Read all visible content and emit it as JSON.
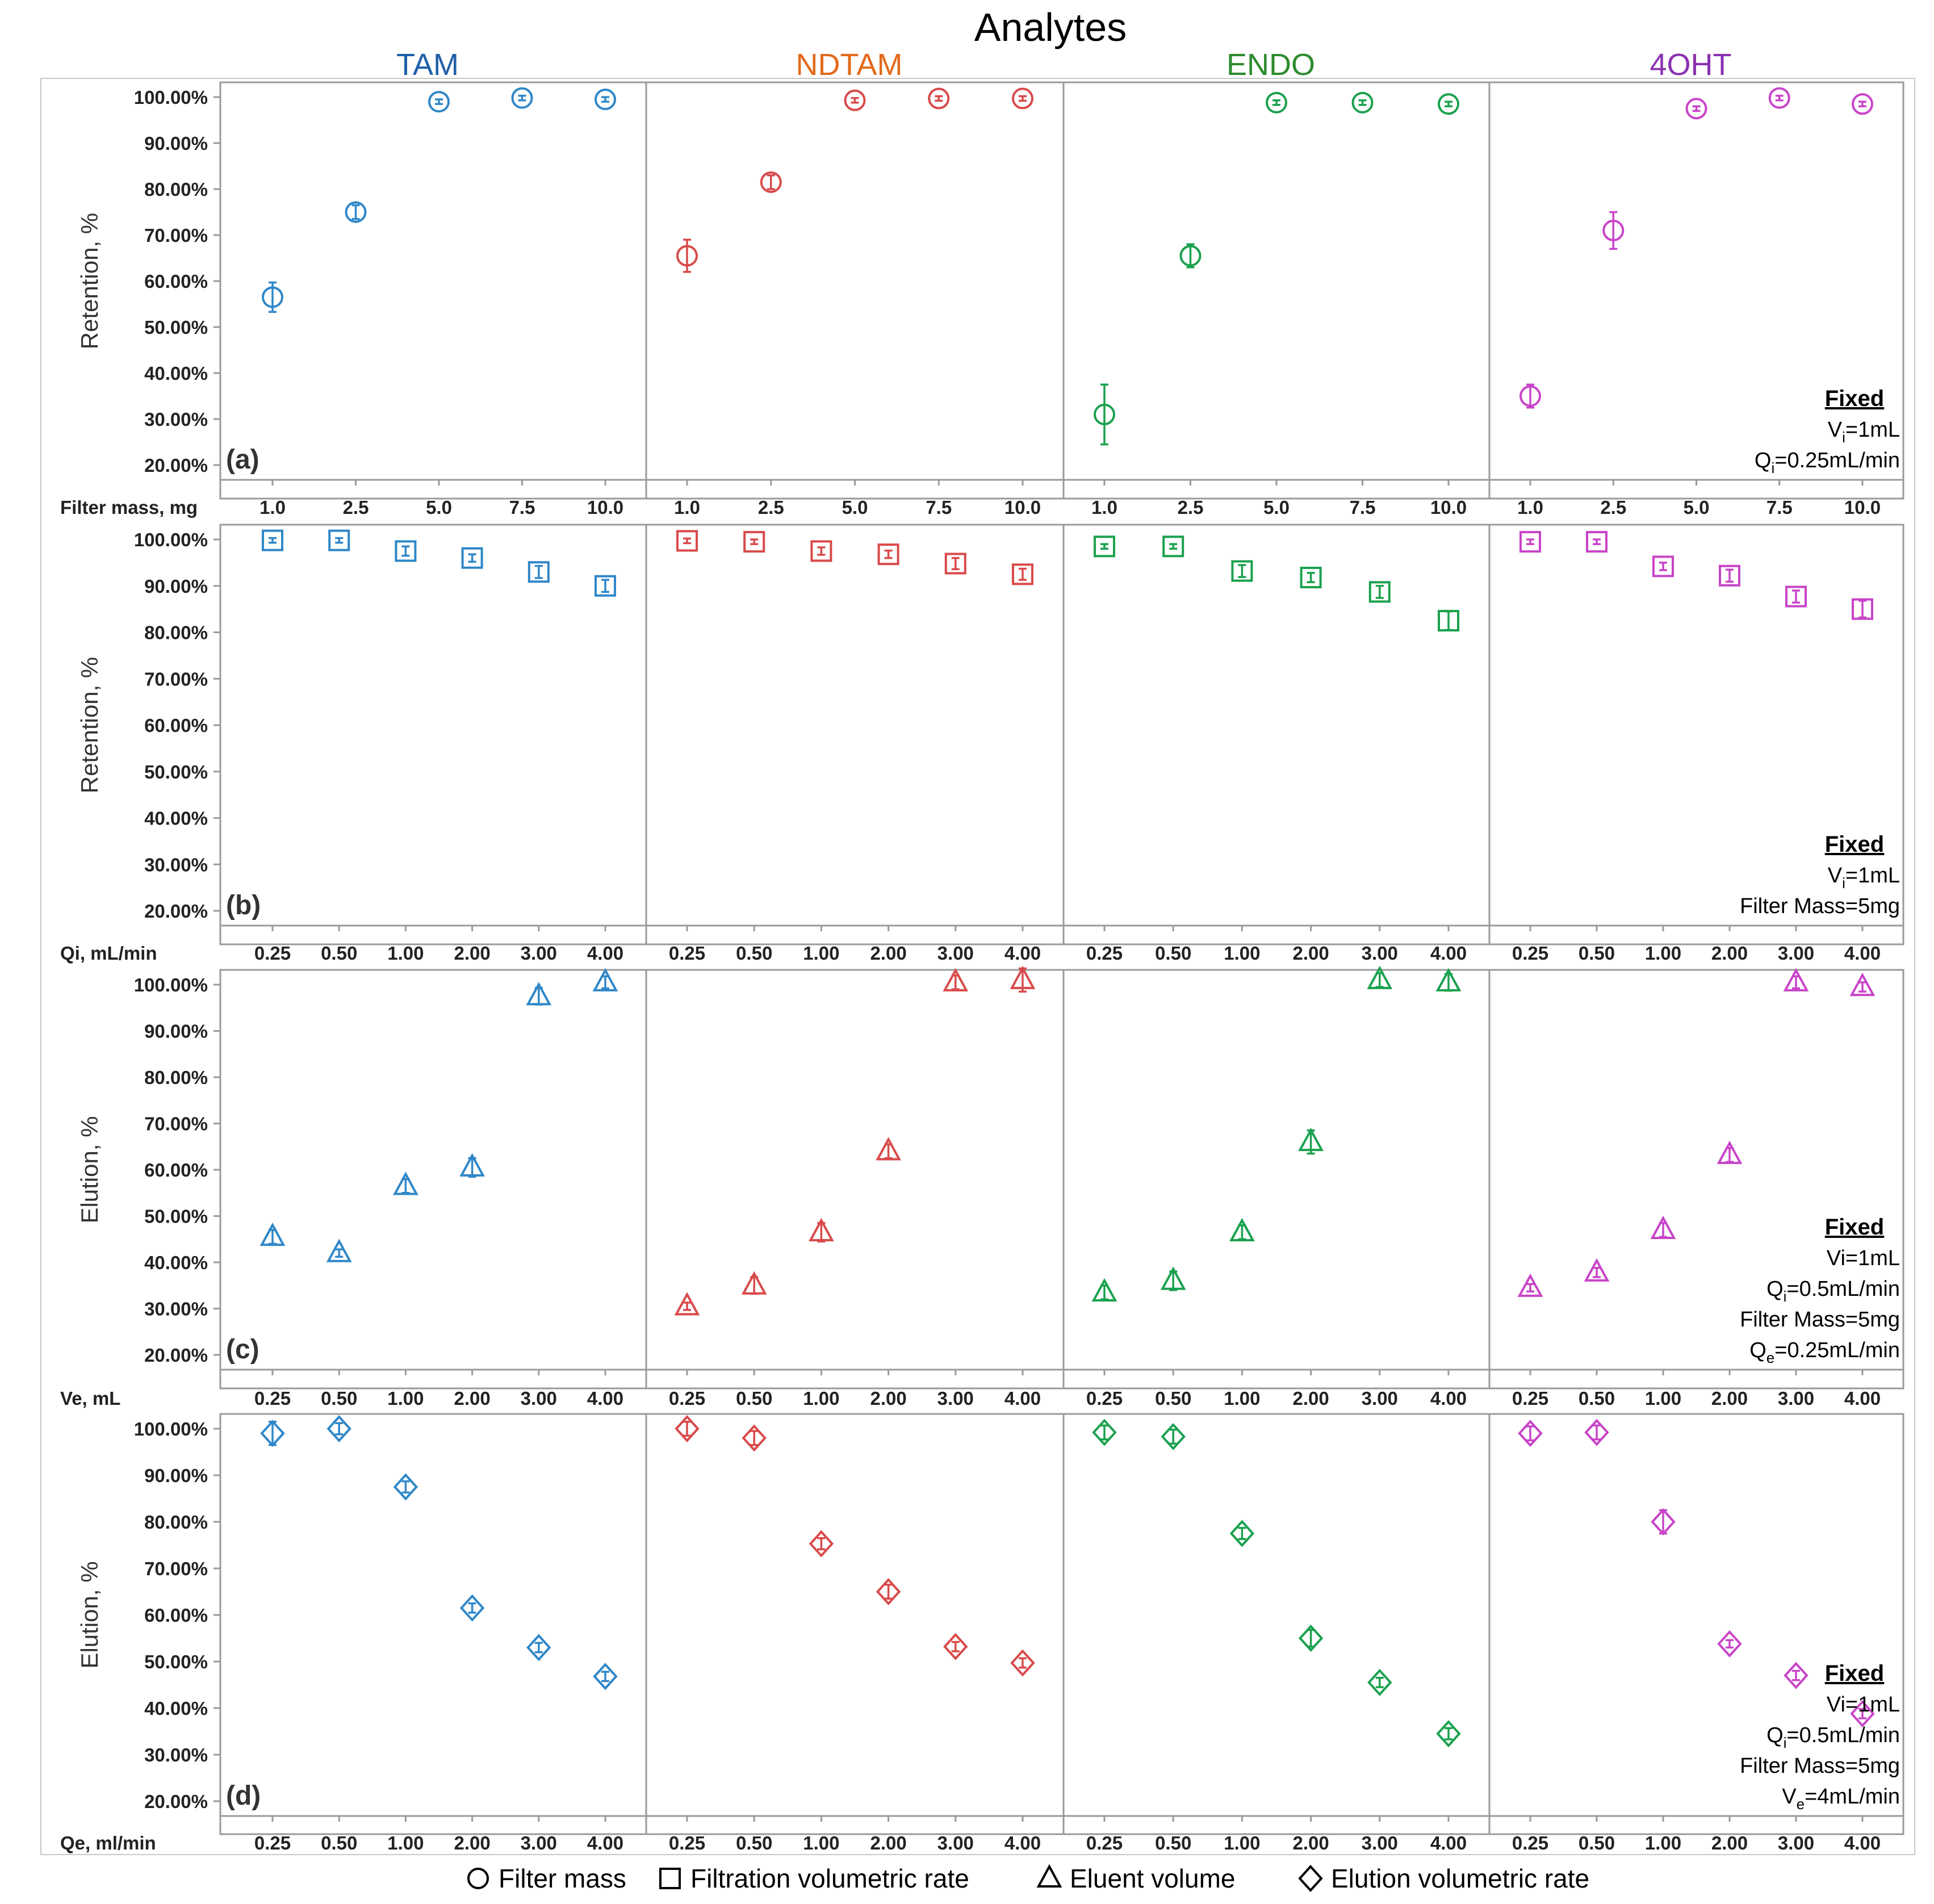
{
  "figure": {
    "title": "Analytes",
    "legend": {
      "items": [
        {
          "shape": "circle",
          "label": "Filter mass"
        },
        {
          "shape": "square",
          "label": "Filtration volumetric rate"
        },
        {
          "shape": "triangle",
          "label": "Eluent volume"
        },
        {
          "shape": "diamond",
          "label": "Elution volumetric rate"
        }
      ]
    }
  },
  "chart_data": {
    "type": "scatter",
    "title": "Analytes",
    "analytes": [
      {
        "name": "TAM",
        "color": "#2f87c8",
        "title_color": "#1f5fa8"
      },
      {
        "name": "NDTAM",
        "color": "#d94a4a",
        "title_color": "#e26a1b"
      },
      {
        "name": "ENDO",
        "color": "#1aa14e",
        "title_color": "#2e8b2e"
      },
      {
        "name": "4OHT",
        "color": "#c844c8",
        "title_color": "#8a32b0"
      }
    ],
    "panels": [
      {
        "label": "(a)",
        "ylabel": "Retention, %",
        "xlabel": "Filter mass, mg",
        "marker": "circle",
        "categories": [
          "1.0",
          "2.5",
          "5.0",
          "7.5",
          "10.0"
        ],
        "ylim": [
          20,
          100
        ],
        "yticks": [
          "100.00%",
          "90.00%",
          "80.00%",
          "70.00%",
          "60.00%",
          "50.00%",
          "40.00%",
          "30.00%",
          "20.00%"
        ],
        "fixed": {
          "heading": "Fixed",
          "lines": [
            [
              "V",
              "i",
              "=1mL"
            ],
            [
              "Q",
              "i",
              "=0.25mL/min"
            ]
          ]
        },
        "series": [
          {
            "analyte": "TAM",
            "values": [
              56.5,
              75.0,
              99.0,
              99.8,
              99.5
            ],
            "errors": [
              3.2,
              1.5,
              0.5,
              0.5,
              0.5
            ]
          },
          {
            "analyte": "NDTAM",
            "values": [
              65.5,
              81.5,
              99.3,
              99.7,
              99.7
            ],
            "errors": [
              3.5,
              1.5,
              0.5,
              0.5,
              0.5
            ]
          },
          {
            "analyte": "ENDO",
            "values": [
              31.0,
              65.5,
              98.8,
              98.8,
              98.5
            ],
            "errors": [
              6.5,
              2.5,
              0.5,
              0.5,
              0.5
            ]
          },
          {
            "analyte": "4OHT",
            "values": [
              35.0,
              71.0,
              97.5,
              99.8,
              98.5
            ],
            "errors": [
              2.5,
              4.0,
              0.5,
              0.5,
              0.5
            ]
          }
        ]
      },
      {
        "label": "(b)",
        "ylabel": "Retention, %",
        "xlabel": "Qi, mL/min",
        "marker": "square",
        "categories": [
          "0.25",
          "0.50",
          "1.00",
          "2.00",
          "3.00",
          "4.00"
        ],
        "ylim": [
          20,
          100
        ],
        "yticks": [
          "100.00%",
          "90.00%",
          "80.00%",
          "70.00%",
          "60.00%",
          "50.00%",
          "40.00%",
          "30.00%",
          "20.00%"
        ],
        "fixed": {
          "heading": "Fixed",
          "lines": [
            [
              "V",
              "i",
              "=1mL"
            ],
            [
              "Filter Mass=5mg",
              "",
              ""
            ]
          ]
        },
        "series": [
          {
            "analyte": "TAM",
            "values": [
              99.8,
              99.8,
              97.5,
              96.0,
              93.0,
              90.0
            ],
            "errors": [
              0.5,
              0.5,
              1.0,
              0.8,
              1.3,
              1.3
            ]
          },
          {
            "analyte": "NDTAM",
            "values": [
              99.7,
              99.5,
              97.5,
              96.8,
              94.8,
              92.5
            ],
            "errors": [
              0.5,
              0.5,
              0.8,
              0.8,
              1.2,
              1.2
            ]
          },
          {
            "analyte": "ENDO",
            "values": [
              98.5,
              98.5,
              93.2,
              91.8,
              88.7,
              82.5
            ],
            "errors": [
              0.5,
              0.5,
              1.3,
              1.0,
              1.3,
              2.0
            ]
          },
          {
            "analyte": "4OHT",
            "values": [
              99.5,
              99.5,
              94.2,
              92.2,
              87.7,
              85.0
            ],
            "errors": [
              0.5,
              0.5,
              0.8,
              1.3,
              1.3,
              1.8
            ]
          }
        ]
      },
      {
        "label": "(c)",
        "ylabel": "Elution, %",
        "xlabel": "Ve, mL",
        "marker": "triangle",
        "categories": [
          "0.25",
          "0.50",
          "1.00",
          "2.00",
          "3.00",
          "4.00"
        ],
        "ylim": [
          20,
          100
        ],
        "yticks": [
          "100.00%",
          "90.00%",
          "80.00%",
          "70.00%",
          "60.00%",
          "50.00%",
          "40.00%",
          "30.00%",
          "20.00%"
        ],
        "fixed": {
          "heading": "Fixed",
          "lines": [
            [
              "Vi=1mL",
              "",
              ""
            ],
            [
              "Q",
              "i",
              "=0.5mL/min"
            ],
            [
              "Filter Mass=5mg",
              "",
              ""
            ],
            [
              "Q",
              "e",
              "=0.25mL/min"
            ]
          ]
        },
        "series": [
          {
            "analyte": "TAM",
            "values": [
              45.5,
              42.0,
              56.5,
              60.5,
              97.5,
              100.5
            ],
            "errors": [
              1.5,
              0.8,
              1.5,
              2.0,
              1.8,
              1.3
            ]
          },
          {
            "analyte": "NDTAM",
            "values": [
              30.5,
              35.0,
              46.5,
              64.0,
              100.5,
              101.0
            ],
            "errors": [
              0.8,
              1.8,
              2.0,
              1.5,
              1.5,
              2.5
            ]
          },
          {
            "analyte": "ENDO",
            "values": [
              33.5,
              36.0,
              46.5,
              66.0,
              101.0,
              100.5
            ],
            "errors": [
              1.5,
              2.0,
              1.5,
              2.5,
              1.5,
              1.8
            ]
          },
          {
            "analyte": "4OHT",
            "values": [
              34.5,
              37.8,
              47.0,
              63.2,
              100.5,
              99.5
            ],
            "errors": [
              0.8,
              1.0,
              1.5,
              1.5,
              1.3,
              1.0
            ]
          }
        ]
      },
      {
        "label": "(d)",
        "ylabel": "Elution, %",
        "xlabel": "Qe, ml/min",
        "marker": "diamond",
        "categories": [
          "0.25",
          "0.50",
          "1.00",
          "2.00",
          "3.00",
          "4.00"
        ],
        "ylim": [
          20,
          100
        ],
        "yticks": [
          "100.00%",
          "90.00%",
          "80.00%",
          "70.00%",
          "60.00%",
          "50.00%",
          "40.00%",
          "30.00%",
          "20.00%"
        ],
        "fixed": {
          "heading": "Fixed",
          "lines": [
            [
              "Vi=1mL",
              "",
              ""
            ],
            [
              "Q",
              "i",
              "=0.5mL/min"
            ],
            [
              "Filter Mass=5mg",
              "",
              ""
            ],
            [
              "V",
              "e",
              "=4mL/min"
            ]
          ]
        },
        "series": [
          {
            "analyte": "TAM",
            "values": [
              99.0,
              100.0,
              87.5,
              61.5,
              53.0,
              46.8
            ],
            "errors": [
              2.5,
              1.2,
              1.2,
              1.0,
              1.0,
              1.0
            ]
          },
          {
            "analyte": "NDTAM",
            "values": [
              100.0,
              98.0,
              75.3,
              65.0,
              53.2,
              49.7
            ],
            "errors": [
              1.5,
              1.5,
              1.2,
              1.5,
              1.0,
              1.0
            ]
          },
          {
            "analyte": "ENDO",
            "values": [
              99.2,
              98.3,
              77.5,
              55.0,
              45.5,
              34.5
            ],
            "errors": [
              1.5,
              1.5,
              1.2,
              1.8,
              1.0,
              1.2
            ]
          },
          {
            "analyte": "4OHT",
            "values": [
              99.0,
              99.2,
              80.0,
              53.8,
              47.0,
              38.8
            ],
            "errors": [
              1.5,
              1.5,
              2.5,
              0.8,
              1.0,
              1.0
            ]
          }
        ]
      }
    ]
  }
}
